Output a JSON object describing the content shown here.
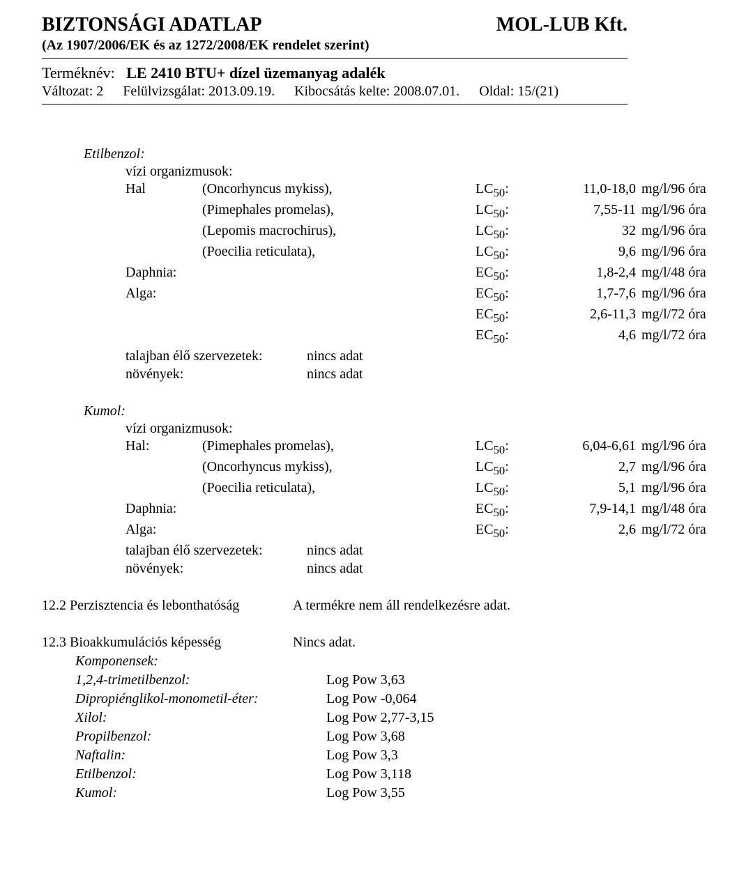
{
  "header": {
    "title": "BIZTONSÁGI ADATLAP",
    "company": "MOL-LUB Kft.",
    "regulation": "(Az 1907/2006/EK és az 1272/2008/EK rendelet szerint)",
    "product_label": "Terméknév:",
    "product_name": "LE 2410 BTU+  dízel üzemanyag adalék",
    "meta": {
      "version": "Változat: 2",
      "revision": "Felülvizsgálat: 2013.09.19.",
      "issued": "Kibocsátás kelte: 2008.07.01.",
      "page": "Oldal: 15/(21)"
    }
  },
  "labels": {
    "aquatic": "vízi organizmusok:",
    "fish": "Hal",
    "fish_colon": "Hal:",
    "daphnia": "Daphnia:",
    "alga": "Alga:",
    "soil": "talajban élő szervezetek:",
    "plants": "növények:",
    "nodata": "nincs adat"
  },
  "etilbenzol": {
    "title": "Etilbenzol:",
    "rows": [
      {
        "label": "Hal",
        "species": "(Oncorhyncus mykiss),",
        "metric": "LC50:",
        "value": "11,0-18,0",
        "unit": "mg/l/96 óra"
      },
      {
        "label": "",
        "species": "(Pimephales promelas),",
        "metric": "LC50:",
        "value": "7,55-11",
        "unit": "mg/l/96 óra"
      },
      {
        "label": "",
        "species": "(Lepomis macrochirus),",
        "metric": "LC50:",
        "value": "32",
        "unit": "mg/l/96 óra"
      },
      {
        "label": "",
        "species": "(Poecilia reticulata),",
        "metric": "LC50:",
        "value": "9,6",
        "unit": "mg/l/96 óra"
      },
      {
        "label": "Daphnia:",
        "species": "",
        "metric": "EC50:",
        "value": "1,8-2,4",
        "unit": "mg/l/48 óra"
      },
      {
        "label": "Alga:",
        "species": "",
        "metric": "EC50:",
        "value": "1,7-7,6",
        "unit": "mg/l/96 óra"
      },
      {
        "label": "",
        "species": "",
        "metric": "EC50:",
        "value": "2,6-11,3",
        "unit": "mg/l/72 óra"
      },
      {
        "label": "",
        "species": "",
        "metric": "EC50:",
        "value": "4,6",
        "unit": "mg/l/72 óra"
      }
    ]
  },
  "kumol": {
    "title": "Kumol:",
    "rows": [
      {
        "label": "Hal:",
        "species": "(Pimephales promelas),",
        "metric": "LC50:",
        "value": "6,04-6,61",
        "unit": "mg/l/96 óra"
      },
      {
        "label": "",
        "species": "(Oncorhyncus mykiss),",
        "metric": "LC50:",
        "value": "2,7",
        "unit": "mg/l/96 óra"
      },
      {
        "label": "",
        "species": "(Poecilia reticulata),",
        "metric": "LC50:",
        "value": "5,1",
        "unit": "mg/l/96 óra"
      },
      {
        "label": "Daphnia:",
        "species": "",
        "metric": "EC50:",
        "value": "7,9-14,1",
        "unit": "mg/l/48 óra"
      },
      {
        "label": "Alga:",
        "species": "",
        "metric": "EC50:",
        "value": "2,6",
        "unit": "mg/l/72 óra"
      }
    ]
  },
  "sec12_2": {
    "num": "12.2",
    "label": "Perzisztencia és lebonthatóság",
    "value": "A termékre nem áll rendelkezésre adat."
  },
  "sec12_3": {
    "num": "12.3",
    "label": "Bioakkumulációs képesség",
    "value": "Nincs adat.",
    "components_label": "Komponensek:",
    "rows": [
      {
        "name": "1,2,4-trimetilbenzol:",
        "value": "Log Pow 3,63"
      },
      {
        "name": "Dipropiénglikol-monometil-éter:",
        "value": "Log Pow -0,064"
      },
      {
        "name": "Xilol:",
        "value": "Log Pow 2,77-3,15"
      },
      {
        "name": "Propilbenzol:",
        "value": "Log Pow 3,68"
      },
      {
        "name": "Naftalin:",
        "value": "Log Pow 3,3"
      },
      {
        "name": "Etilbenzol:",
        "value": "Log Pow 3,118"
      },
      {
        "name": "Kumol:",
        "value": "Log Pow 3,55"
      }
    ]
  },
  "style": {
    "text_color": "#000000",
    "background_color": "#ffffff",
    "base_fontsize": 20,
    "title_fontsize": 28,
    "font_family": "Times New Roman"
  }
}
